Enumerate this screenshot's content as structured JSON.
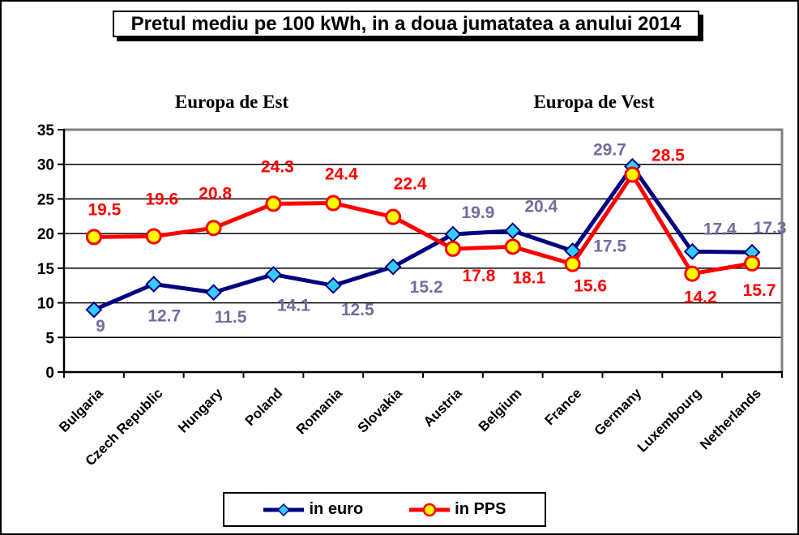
{
  "chart_data": {
    "type": "line",
    "title": "Pretul mediu pe 100 kWh, in a doua jumatatea a anului 2014",
    "annotations": [
      {
        "label": "Europa de Est",
        "span": [
          "Bulgaria",
          "Slovakia"
        ]
      },
      {
        "label": "Europa de Vest",
        "span": [
          "Austria",
          "Netherlands"
        ]
      }
    ],
    "categories": [
      "Bulgaria",
      "Czech Republic",
      "Hungary",
      "Poland",
      "Romania",
      "Slovakia",
      "Austria",
      "Belgium",
      "France",
      "Germany",
      "Luxembourg",
      "Netherlands"
    ],
    "series": [
      {
        "name": "in euro",
        "values": [
          9,
          12.7,
          11.5,
          14.1,
          12.5,
          15.2,
          19.9,
          20.4,
          17.5,
          29.7,
          17.4,
          17.3
        ],
        "marker": "diamond",
        "line_color": "#000080",
        "marker_fill": "#33CCFF",
        "marker_stroke": "#000080",
        "label_color": "#6E6E9E",
        "label_offsets": [
          [
            8,
            20
          ],
          [
            13,
            39
          ],
          [
            21,
            30
          ],
          [
            25,
            38
          ],
          [
            30,
            30
          ],
          [
            41,
            25
          ],
          [
            31,
            -27
          ],
          [
            35,
            -30
          ],
          [
            46,
            -6
          ],
          [
            -28,
            -21
          ],
          [
            34,
            -28
          ],
          [
            22,
            -30
          ]
        ]
      },
      {
        "name": "in PPS",
        "values": [
          19.5,
          19.6,
          20.8,
          24.3,
          24.4,
          22.4,
          17.8,
          18.1,
          15.6,
          28.5,
          14.2,
          15.7
        ],
        "marker": "circle",
        "line_color": "#FF0000",
        "marker_fill": "#FFFF00",
        "marker_stroke": "#FF0000",
        "label_color": "#FF0000",
        "label_offsets": [
          [
            13,
            -34
          ],
          [
            10,
            -46
          ],
          [
            2,
            -43
          ],
          [
            5,
            -46
          ],
          [
            10,
            -36
          ],
          [
            21,
            -41
          ],
          [
            32,
            33
          ],
          [
            20,
            38
          ],
          [
            22,
            27
          ],
          [
            44,
            -24
          ],
          [
            10,
            29
          ],
          [
            9,
            33
          ]
        ]
      }
    ],
    "ylim": [
      0,
      35
    ],
    "yticks": [
      0,
      5,
      10,
      15,
      20,
      25,
      30,
      35
    ],
    "grid": "horizontal",
    "legend_position": "bottom",
    "colors": {
      "gridline": "#000000",
      "axis": "#000000",
      "plot_border_gray": "#808080",
      "background": "#FFFFFF"
    }
  }
}
